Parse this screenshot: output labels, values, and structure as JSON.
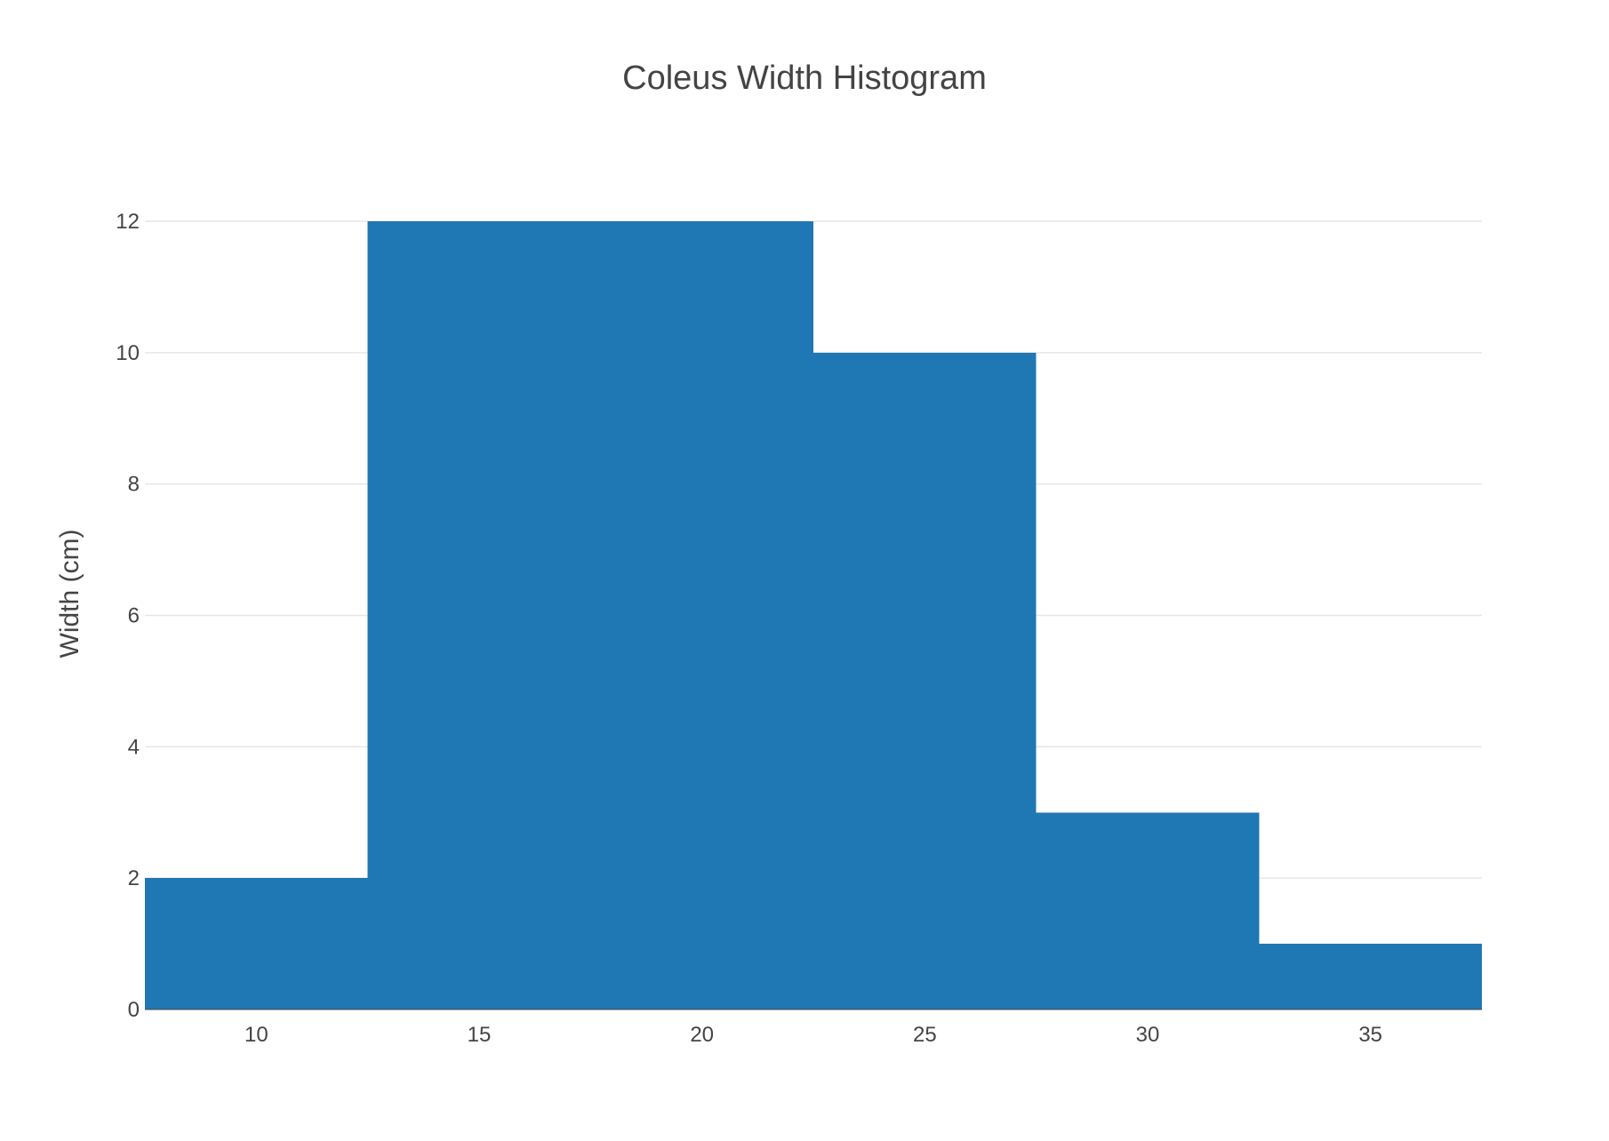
{
  "chart_data": {
    "type": "bar",
    "title": "Coleus Width Histogram",
    "xlabel": "",
    "ylabel": "Width (cm)",
    "bins": [
      {
        "start": 7.5,
        "end": 12.5,
        "count": 2
      },
      {
        "start": 12.5,
        "end": 17.5,
        "count": 12
      },
      {
        "start": 17.5,
        "end": 22.5,
        "count": 12
      },
      {
        "start": 22.5,
        "end": 27.5,
        "count": 10
      },
      {
        "start": 27.5,
        "end": 32.5,
        "count": 3
      },
      {
        "start": 32.5,
        "end": 37.5,
        "count": 1
      }
    ],
    "xlim": [
      7.5,
      37.5
    ],
    "ylim": [
      0,
      12
    ],
    "xticks": [
      10,
      15,
      20,
      25,
      30,
      35
    ],
    "yticks": [
      0,
      2,
      4,
      6,
      8,
      10,
      12
    ],
    "grid": true,
    "bar_color": "#1f77b4"
  }
}
